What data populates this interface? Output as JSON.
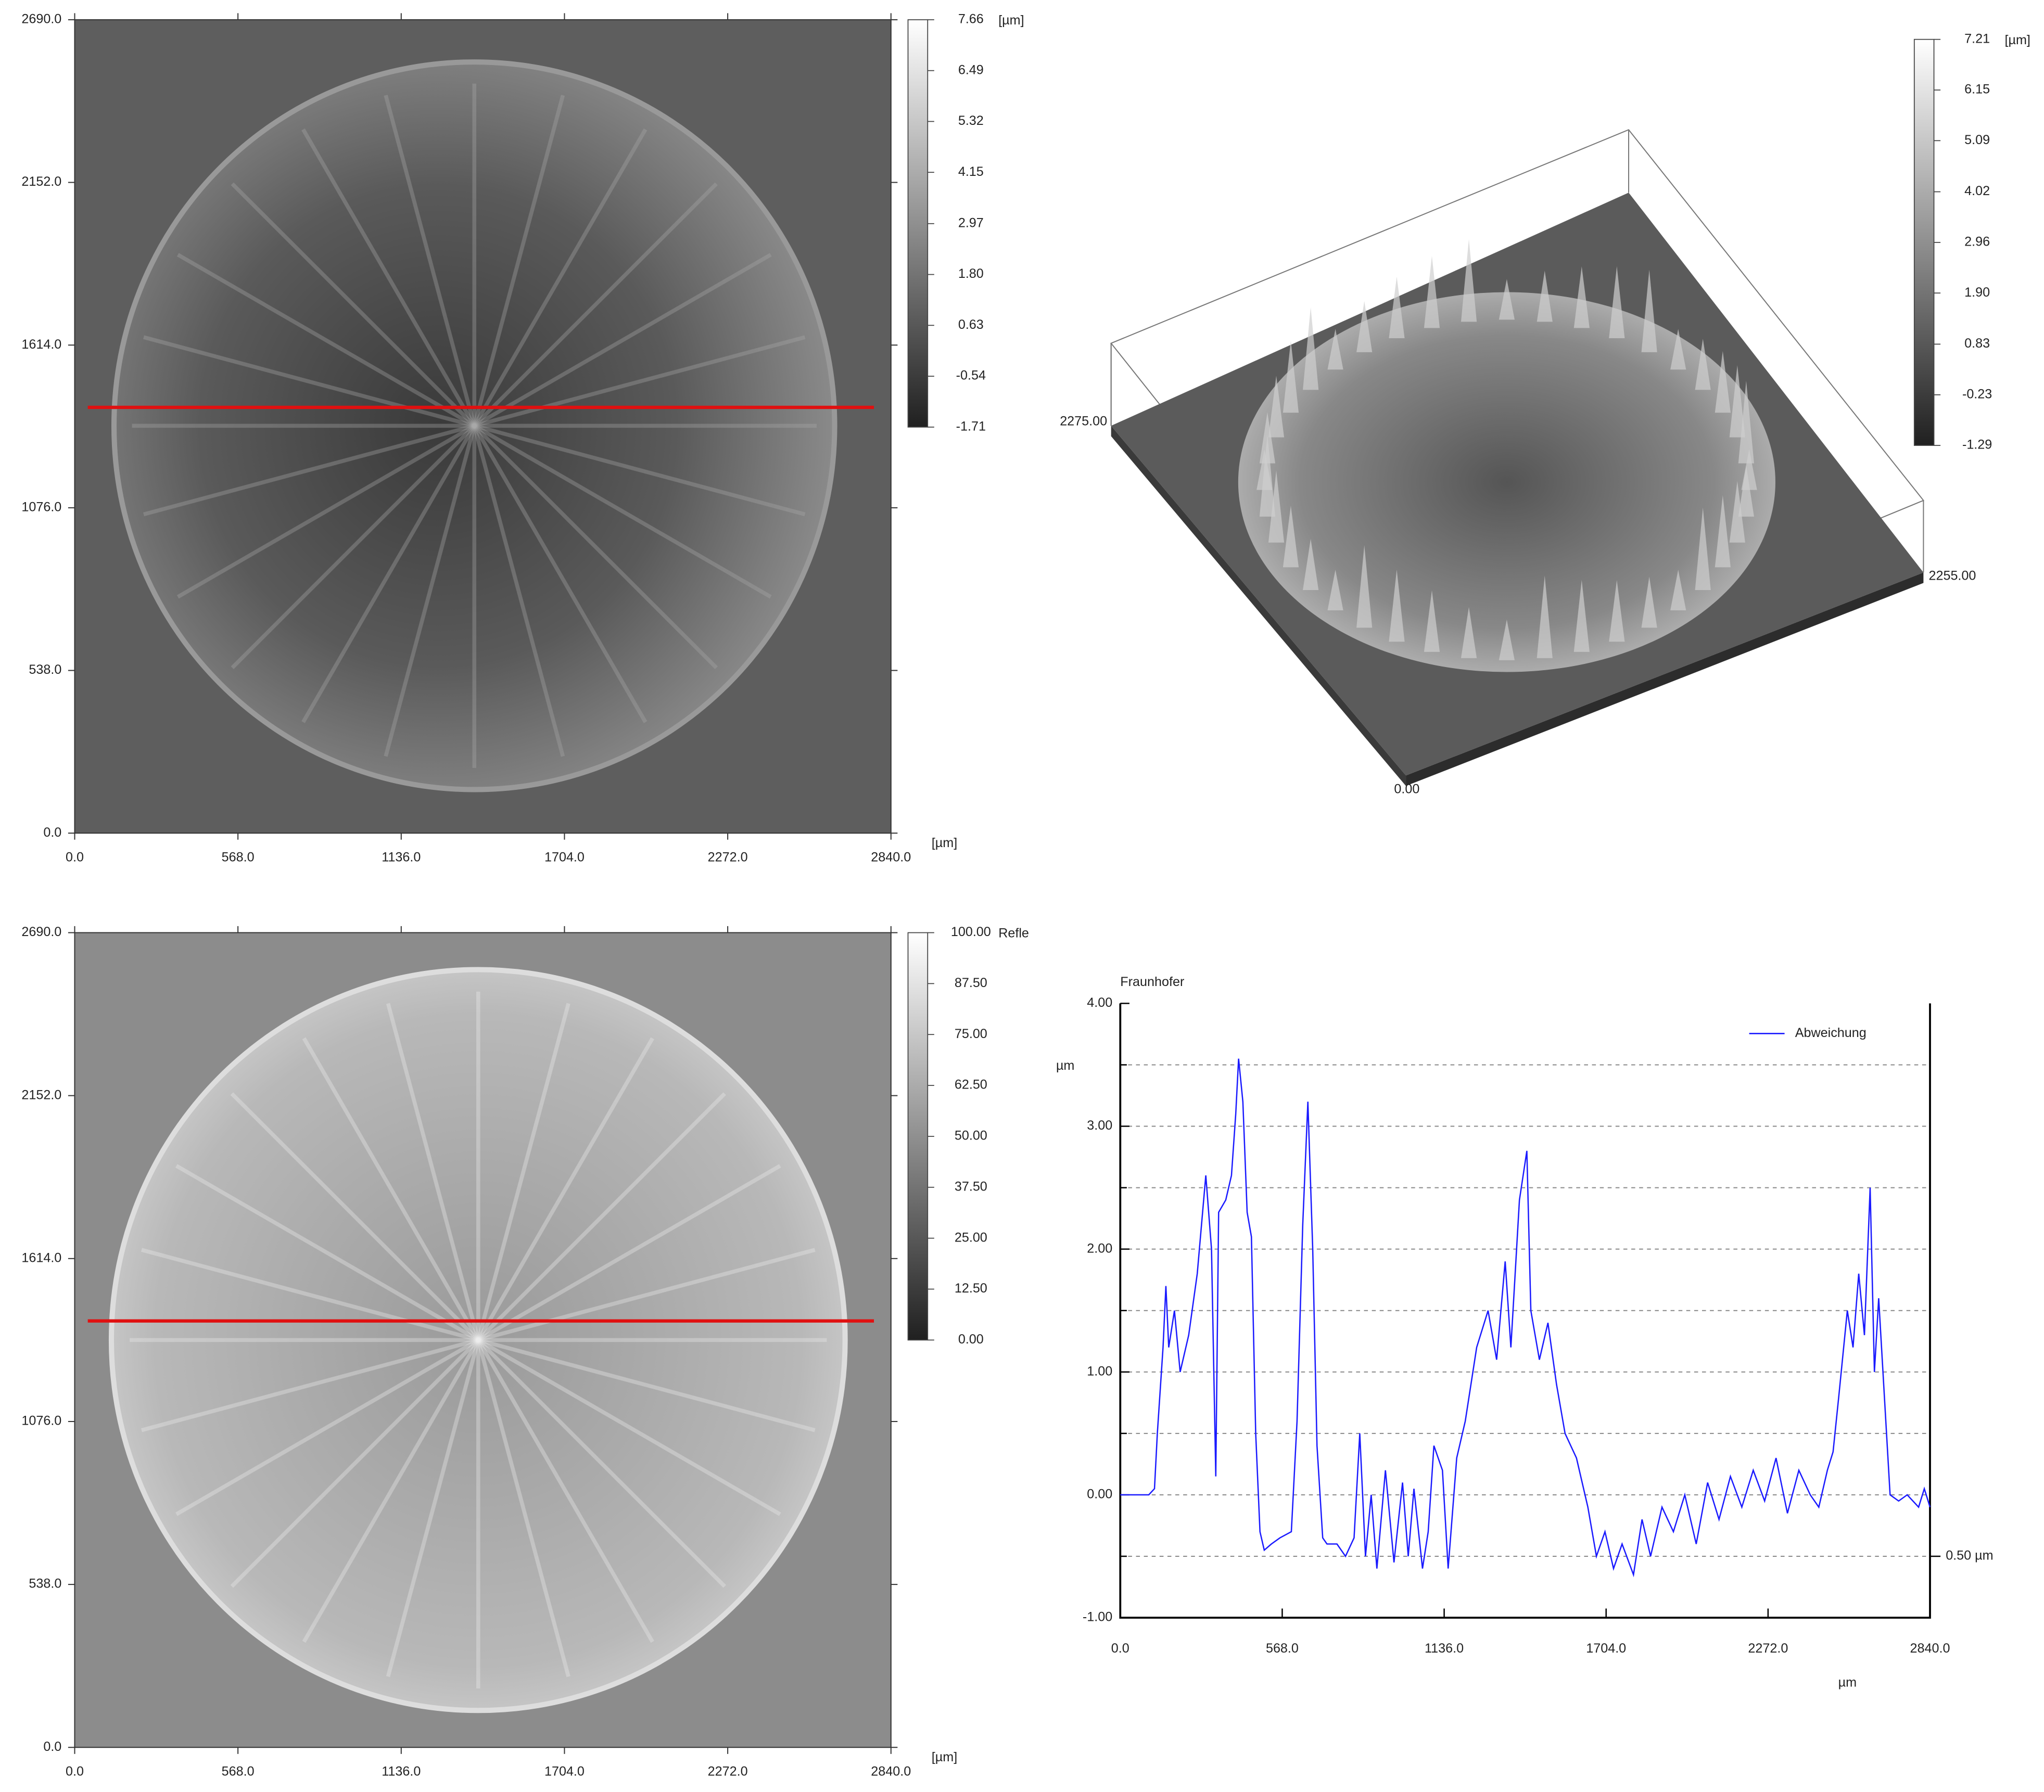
{
  "chart_data": [
    {
      "type": "heatmap",
      "x_unit": "[µm]",
      "xlim": [
        0,
        2840
      ],
      "ylim": [
        0,
        2690
      ],
      "xticks": [
        {
          "value": 0,
          "label": "0.0"
        },
        {
          "value": 568,
          "label": "568.0"
        },
        {
          "value": 1136,
          "label": "1136.0"
        },
        {
          "value": 1704,
          "label": "1704.0"
        },
        {
          "value": 2272,
          "label": "2272.0"
        },
        {
          "value": 2840,
          "label": "2840.0"
        }
      ],
      "yticks": [
        {
          "value": 0,
          "label": "0.0"
        },
        {
          "value": 538,
          "label": "538.0"
        },
        {
          "value": 1076,
          "label": "1076.0"
        },
        {
          "value": 1614,
          "label": "1614.0"
        },
        {
          "value": 2152,
          "label": "2152.0"
        },
        {
          "value": 2690,
          "label": "2690.0"
        }
      ],
      "colorbar": {
        "unit": "[µm]",
        "lim": [
          -1.71,
          7.66
        ],
        "ticks": [
          7.66,
          6.49,
          5.32,
          4.15,
          2.97,
          {
            "value": 1.8,
            "label": "1.80"
          },
          0.63,
          -0.54,
          -1.71
        ]
      },
      "profile_y": 1408,
      "profile_color": "#e01010"
    },
    {
      "type": "surface3d",
      "axis_labels": [
        "2275.00",
        "2255.00",
        "0.00"
      ],
      "colorbar": {
        "unit": "[µm]",
        "lim": [
          -1.29,
          7.21
        ],
        "ticks": [
          7.21,
          6.15,
          5.09,
          4.02,
          2.96,
          {
            "value": 1.9,
            "label": "1.90"
          },
          0.83,
          -0.23,
          -1.29
        ]
      }
    },
    {
      "type": "heatmap",
      "x_unit": "[µm]",
      "xlim": [
        0,
        2840
      ],
      "ylim": [
        0,
        2690
      ],
      "xticks": [
        {
          "value": 0,
          "label": "0.0"
        },
        {
          "value": 568,
          "label": "568.0"
        },
        {
          "value": 1136,
          "label": "1136.0"
        },
        {
          "value": 1704,
          "label": "1704.0"
        },
        {
          "value": 2272,
          "label": "2272.0"
        },
        {
          "value": 2840,
          "label": "2840.0"
        }
      ],
      "yticks": [
        {
          "value": 0,
          "label": "0.0"
        },
        {
          "value": 538,
          "label": "538.0"
        },
        {
          "value": 1076,
          "label": "1076.0"
        },
        {
          "value": 1614,
          "label": "1614.0"
        },
        {
          "value": 2152,
          "label": "2152.0"
        },
        {
          "value": 2690,
          "label": "2690.0"
        }
      ],
      "colorbar": {
        "unit": "Refle",
        "lim": [
          0,
          100
        ],
        "ticks": [
          {
            "value": 100,
            "label": "100.00"
          },
          {
            "value": 87.5,
            "label": "87.50"
          },
          {
            "value": 75,
            "label": "75.00"
          },
          {
            "value": 62.5,
            "label": "62.50"
          },
          {
            "value": 50,
            "label": "50.00"
          },
          {
            "value": 37.5,
            "label": "37.50"
          },
          {
            "value": 25,
            "label": "25.00"
          },
          {
            "value": 12.5,
            "label": "12.50"
          },
          {
            "value": 0,
            "label": "0.00"
          }
        ]
      },
      "profile_y": 1408,
      "profile_color": "#e01010"
    },
    {
      "type": "line",
      "title": "Fraunhofer",
      "y_label": "µm",
      "x_label": "µm",
      "legend": "upper right",
      "grid": true,
      "xlim": [
        0,
        2840
      ],
      "ylim": [
        -1,
        4
      ],
      "xticks": [
        {
          "value": 0,
          "label": "0.0"
        },
        {
          "value": 568,
          "label": "568.0"
        },
        {
          "value": 1136,
          "label": "1136.0"
        },
        {
          "value": 1704,
          "label": "1704.0"
        },
        {
          "value": 2272,
          "label": "2272.0"
        },
        {
          "value": 2840,
          "label": "2840.0"
        }
      ],
      "yticks": [
        {
          "value": -1,
          "label": "-1.00"
        },
        {
          "value": 0,
          "label": "0.00"
        },
        {
          "value": 1,
          "label": "1.00"
        },
        {
          "value": 2,
          "label": "2.00"
        },
        {
          "value": 3,
          "label": "3.00"
        },
        {
          "value": 4,
          "label": "4.00"
        }
      ],
      "minor_grid": [
        -0.5,
        0.5,
        1.5,
        2.5,
        3.5
      ],
      "annotation": {
        "text": "0.50 µm",
        "y": -0.5
      },
      "x": [
        0,
        100,
        120,
        130,
        150,
        160,
        170,
        190,
        210,
        240,
        270,
        300,
        320,
        335,
        345,
        370,
        390,
        405,
        415,
        430,
        445,
        460,
        475,
        490,
        505,
        530,
        560,
        600,
        620,
        640,
        658,
        675,
        690,
        710,
        725,
        760,
        790,
        820,
        840,
        860,
        880,
        900,
        930,
        960,
        990,
        1010,
        1030,
        1060,
        1080,
        1100,
        1130,
        1150,
        1180,
        1210,
        1250,
        1290,
        1320,
        1350,
        1370,
        1400,
        1426,
        1440,
        1470,
        1500,
        1530,
        1560,
        1600,
        1640,
        1670,
        1700,
        1730,
        1760,
        1800,
        1830,
        1860,
        1900,
        1940,
        1980,
        2020,
        2060,
        2100,
        2140,
        2180,
        2220,
        2260,
        2300,
        2340,
        2380,
        2420,
        2450,
        2480,
        2500,
        2520,
        2550,
        2570,
        2590,
        2610,
        2630,
        2645,
        2660,
        2680,
        2700,
        2730,
        2760,
        2800,
        2820,
        2840
      ],
      "series": [
        {
          "name": "Abweichung",
          "color": "#1a1aff",
          "values": [
            0.0,
            0.0,
            0.05,
            0.5,
            1.2,
            1.7,
            1.2,
            1.5,
            1.0,
            1.3,
            1.8,
            2.6,
            2.0,
            0.15,
            2.3,
            2.4,
            2.6,
            3.1,
            3.55,
            3.2,
            2.3,
            2.1,
            0.5,
            -0.3,
            -0.45,
            -0.4,
            -0.35,
            -0.3,
            0.6,
            2.2,
            3.2,
            2.0,
            0.4,
            -0.35,
            -0.4,
            -0.4,
            -0.5,
            -0.35,
            0.5,
            -0.5,
            0.0,
            -0.6,
            0.2,
            -0.55,
            0.1,
            -0.5,
            0.05,
            -0.6,
            -0.3,
            0.4,
            0.2,
            -0.6,
            0.3,
            0.6,
            1.2,
            1.5,
            1.1,
            1.9,
            1.2,
            2.4,
            2.8,
            1.5,
            1.1,
            1.4,
            0.9,
            0.5,
            0.3,
            -0.1,
            -0.5,
            -0.3,
            -0.6,
            -0.4,
            -0.65,
            -0.2,
            -0.5,
            -0.1,
            -0.3,
            0.0,
            -0.4,
            0.1,
            -0.2,
            0.15,
            -0.1,
            0.2,
            -0.05,
            0.3,
            -0.15,
            0.2,
            0.0,
            -0.1,
            0.2,
            0.35,
            0.8,
            1.5,
            1.2,
            1.8,
            1.3,
            2.5,
            1.0,
            1.6,
            0.8,
            0.0,
            -0.05,
            0.0,
            -0.1,
            0.05,
            -0.1
          ]
        }
      ]
    }
  ]
}
